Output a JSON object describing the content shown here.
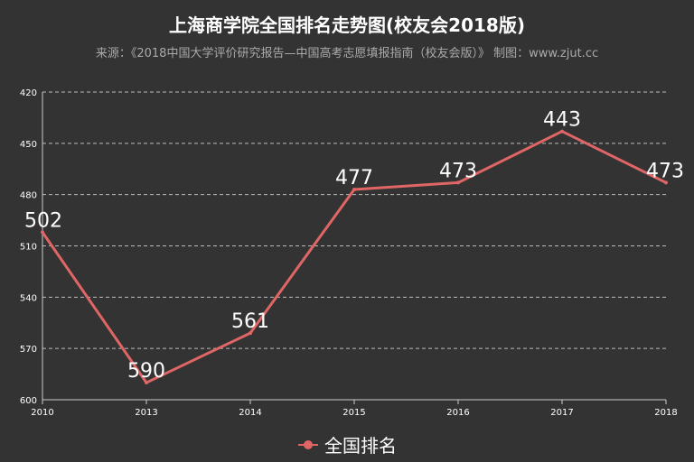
{
  "header": {
    "title": "上海商学院全国排名走势图(校友会2018版)",
    "subtitle": "来源：《2018中国大学评价研究报告—中国高考志愿填报指南（校友会版）》 制图：www.zjut.cc"
  },
  "colors": {
    "background": "#333333",
    "line": "#e06666",
    "grid": "#bbbbbb",
    "text": "#ffffff"
  },
  "chart_data": {
    "type": "line",
    "title": "上海商学院全国排名走势图(校友会2018版)",
    "subtitle": "来源：《2018中国大学评价研究报告—中国高考志愿填报指南（校友会版）》 制图：www.zjut.cc",
    "x": [
      "2010",
      "2013",
      "2014",
      "2015",
      "2016",
      "2017",
      "2018"
    ],
    "series": [
      {
        "name": "全国排名",
        "values": [
          502,
          590,
          561,
          477,
          473,
          443,
          473
        ]
      }
    ],
    "ylim": [
      420,
      600
    ],
    "y_inverted": true,
    "yticks": [
      "420",
      "450",
      "480",
      "510",
      "540",
      "570",
      "600"
    ],
    "grid": true,
    "legend": "bottom"
  }
}
